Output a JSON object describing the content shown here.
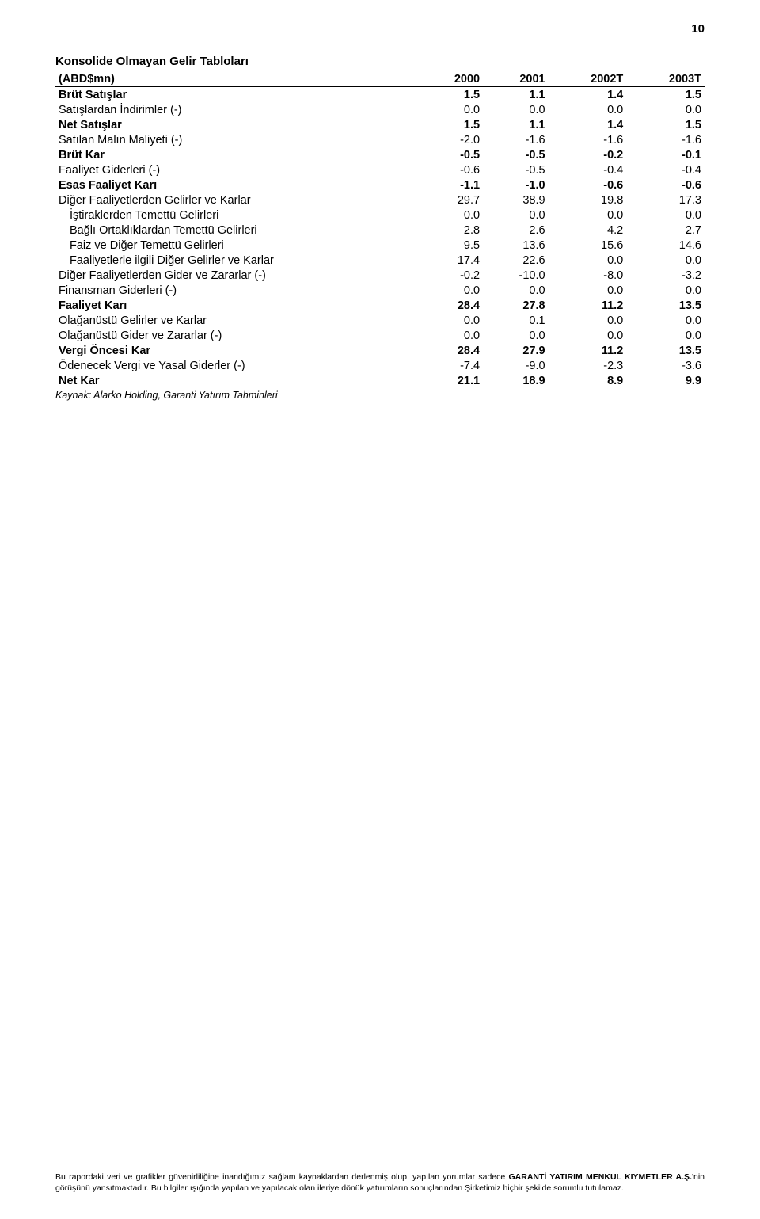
{
  "page_number": "10",
  "title": "Konsolide Olmayan Gelir Tabloları",
  "header": {
    "label_col": "(ABD$mn)",
    "cols": [
      "2000",
      "2001",
      "2002T",
      "2003T"
    ]
  },
  "rows": [
    {
      "label": "Brüt Satışlar",
      "v": [
        "1.5",
        "1.1",
        "1.4",
        "1.5"
      ],
      "bold": true,
      "indent": 0
    },
    {
      "label": "Satışlardan İndirimler (-)",
      "v": [
        "0.0",
        "0.0",
        "0.0",
        "0.0"
      ],
      "bold": false,
      "indent": 0
    },
    {
      "label": "Net Satışlar",
      "v": [
        "1.5",
        "1.1",
        "1.4",
        "1.5"
      ],
      "bold": true,
      "indent": 0
    },
    {
      "label": "Satılan Malın Maliyeti (-)",
      "v": [
        "-2.0",
        "-1.6",
        "-1.6",
        "-1.6"
      ],
      "bold": false,
      "indent": 0
    },
    {
      "label": "Brüt Kar",
      "v": [
        "-0.5",
        "-0.5",
        "-0.2",
        "-0.1"
      ],
      "bold": true,
      "indent": 0
    },
    {
      "label": "Faaliyet Giderleri (-)",
      "v": [
        "-0.6",
        "-0.5",
        "-0.4",
        "-0.4"
      ],
      "bold": false,
      "indent": 0
    },
    {
      "label": "Esas Faaliyet Karı",
      "v": [
        "-1.1",
        "-1.0",
        "-0.6",
        "-0.6"
      ],
      "bold": true,
      "indent": 0
    },
    {
      "label": "Diğer Faaliyetlerden Gelirler ve Karlar",
      "v": [
        "29.7",
        "38.9",
        "19.8",
        "17.3"
      ],
      "bold": false,
      "indent": 0
    },
    {
      "label": "İştiraklerden Temettü Gelirleri",
      "v": [
        "0.0",
        "0.0",
        "0.0",
        "0.0"
      ],
      "bold": false,
      "indent": 1
    },
    {
      "label": "Bağlı Ortaklıklardan Temettü Gelirleri",
      "v": [
        "2.8",
        "2.6",
        "4.2",
        "2.7"
      ],
      "bold": false,
      "indent": 1
    },
    {
      "label": "Faiz ve Diğer Temettü Gelirleri",
      "v": [
        "9.5",
        "13.6",
        "15.6",
        "14.6"
      ],
      "bold": false,
      "indent": 1
    },
    {
      "label": "Faaliyetlerle ilgili Diğer Gelirler ve Karlar",
      "v": [
        "17.4",
        "22.6",
        "0.0",
        "0.0"
      ],
      "bold": false,
      "indent": 1
    },
    {
      "label": "Diğer Faaliyetlerden Gider ve Zararlar (-)",
      "v": [
        "-0.2",
        "-10.0",
        "-8.0",
        "-3.2"
      ],
      "bold": false,
      "indent": 0
    },
    {
      "label": "Finansman Giderleri (-)",
      "v": [
        "0.0",
        "0.0",
        "0.0",
        "0.0"
      ],
      "bold": false,
      "indent": 0
    },
    {
      "label": "Faaliyet Karı",
      "v": [
        "28.4",
        "27.8",
        "11.2",
        "13.5"
      ],
      "bold": true,
      "indent": 0
    },
    {
      "label": "Olağanüstü Gelirler ve Karlar",
      "v": [
        "0.0",
        "0.1",
        "0.0",
        "0.0"
      ],
      "bold": false,
      "indent": 0
    },
    {
      "label": "Olağanüstü Gider ve Zararlar (-)",
      "v": [
        "0.0",
        "0.0",
        "0.0",
        "0.0"
      ],
      "bold": false,
      "indent": 0
    },
    {
      "label": "Vergi Öncesi Kar",
      "v": [
        "28.4",
        "27.9",
        "11.2",
        "13.5"
      ],
      "bold": true,
      "indent": 0
    },
    {
      "label": "Ödenecek Vergi ve Yasal Giderler (-)",
      "v": [
        "-7.4",
        "-9.0",
        "-2.3",
        "-3.6"
      ],
      "bold": false,
      "indent": 0
    },
    {
      "label": "Net Kar",
      "v": [
        "21.1",
        "18.9",
        "8.9",
        "9.9"
      ],
      "bold": true,
      "indent": 0
    }
  ],
  "source": "Kaynak: Alarko Holding, Garanti Yatırım Tahminleri",
  "footer": "Bu rapordaki veri ve grafikler güvenirliliğine inandığımız sağlam kaynaklardan derlenmiş olup, yapılan yorumlar sadece GARANTİ YATIRIM MENKUL KIYMETLER A.Ş.'nin görüşünü yansıtmaktadır. Bu bilgiler ışığında yapılan ve yapılacak olan ileriye dönük yatırımların sonuçlarından Şirketimiz hiçbir şekilde sorumlu tutulamaz.",
  "colors": {
    "text": "#000000",
    "background": "#ffffff",
    "rule": "#000000"
  },
  "typography": {
    "body_fontsize": 14.5,
    "title_fontsize": 15,
    "source_fontsize": 12.5,
    "footer_fontsize": 10.5
  }
}
